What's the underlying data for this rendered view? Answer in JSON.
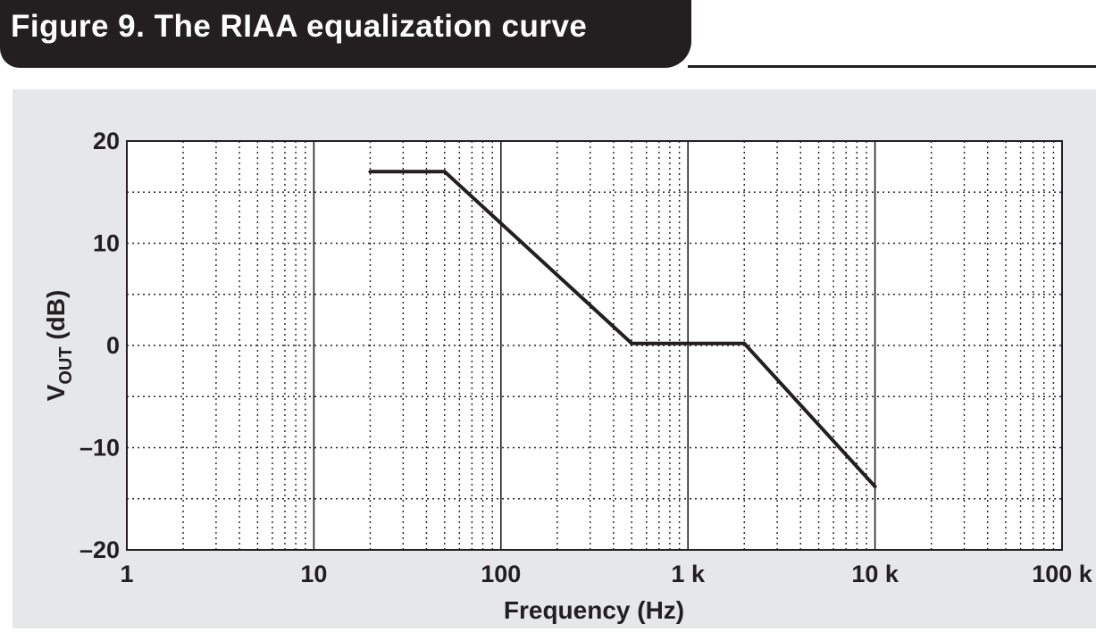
{
  "figure_title": "Figure 9. The RIAA equalization curve",
  "colors": {
    "title_bar": "#231f20",
    "plot_background": "#e6e7e8",
    "plot_area": "#ffffff",
    "curve": "#231f20",
    "grid": "#231f20"
  },
  "chart_data": {
    "type": "line",
    "xscale": "log",
    "xlim": [
      1,
      100000
    ],
    "ylim": [
      -20,
      20
    ],
    "grid": true,
    "grid_style": "dotted",
    "x_tick_values": [
      1,
      10,
      100,
      1000,
      10000,
      100000
    ],
    "x_tick_labels": [
      "1",
      "10",
      "100",
      "1 k",
      "10 k",
      "100 k"
    ],
    "y_tick_values": [
      20,
      10,
      0,
      -10,
      -20
    ],
    "y_tick_labels": [
      "20",
      "10",
      "0",
      "–10",
      "–20"
    ],
    "xlabel": "Frequency (Hz)",
    "ylabel_main": "V",
    "ylabel_sub": "OUT",
    "ylabel_unit": " (dB)",
    "series": [
      {
        "x": [
          20,
          50,
          500,
          2000,
          10000
        ],
        "y": [
          17,
          17,
          0.2,
          0.2,
          -13.8
        ]
      }
    ]
  }
}
